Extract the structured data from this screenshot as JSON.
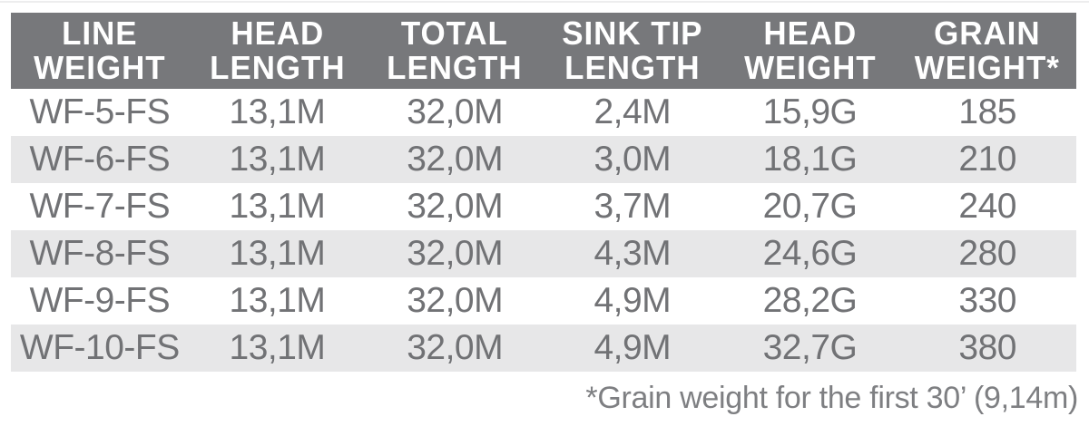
{
  "colors": {
    "header_bg": "#77787b",
    "header_text": "#ffffff",
    "row_stripe": "#e7e7e8",
    "body_text": "#717275",
    "footnote_text": "#7e7f82"
  },
  "table": {
    "columns": [
      {
        "line1": "LINE",
        "line2": "WEIGHT"
      },
      {
        "line1": "HEAD",
        "line2": "LENGTH"
      },
      {
        "line1": "TOTAL",
        "line2": "LENGTH"
      },
      {
        "line1": "SINK TIP",
        "line2": "LENGTH"
      },
      {
        "line1": "HEAD",
        "line2": "WEIGHT"
      },
      {
        "line1": "GRAIN",
        "line2": "WEIGHT*"
      }
    ],
    "rows": [
      [
        "WF-5-FS",
        "13,1M",
        "32,0M",
        "2,4M",
        "15,9G",
        "185"
      ],
      [
        "WF-6-FS",
        "13,1M",
        "32,0M",
        "3,0M",
        "18,1G",
        "210"
      ],
      [
        "WF-7-FS",
        "13,1M",
        "32,0M",
        "3,7M",
        "20,7G",
        "240"
      ],
      [
        "WF-8-FS",
        "13,1M",
        "32,0M",
        "4,3M",
        "24,6G",
        "280"
      ],
      [
        "WF-9-FS",
        "13,1M",
        "32,0M",
        "4,9M",
        "28,2G",
        "330"
      ],
      [
        "WF-10-FS",
        "13,1M",
        "32,0M",
        "4,9M",
        "32,7G",
        "380"
      ]
    ]
  },
  "footnote": "*Grain weight for the first 30’ (9,14m)"
}
